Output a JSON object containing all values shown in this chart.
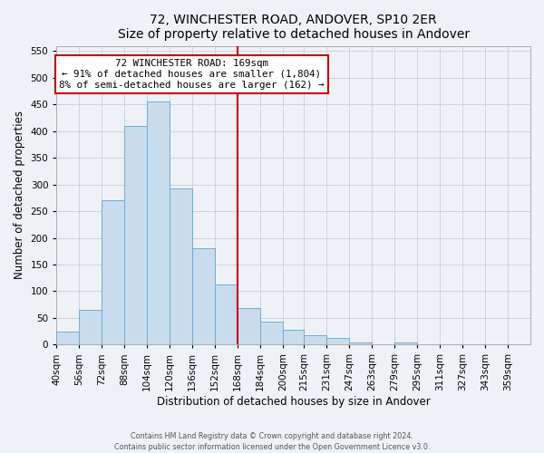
{
  "title": "72, WINCHESTER ROAD, ANDOVER, SP10 2ER",
  "subtitle": "Size of property relative to detached houses in Andover",
  "xlabel": "Distribution of detached houses by size in Andover",
  "ylabel": "Number of detached properties",
  "bar_edges": [
    40,
    56,
    72,
    88,
    104,
    120,
    136,
    152,
    168,
    184,
    200,
    215,
    231,
    247,
    263,
    279,
    295,
    311,
    327,
    343,
    359,
    375
  ],
  "bar_heights": [
    25,
    65,
    270,
    410,
    455,
    293,
    180,
    113,
    68,
    43,
    27,
    17,
    12,
    4,
    1,
    4,
    1,
    1,
    1,
    1,
    0
  ],
  "bar_color": "#c8dcee",
  "bar_edge_color": "#6aaed6",
  "vline_x": 168,
  "vline_color": "#cc0000",
  "annotation_title": "72 WINCHESTER ROAD: 169sqm",
  "annotation_line1": "← 91% of detached houses are smaller (1,804)",
  "annotation_line2": "8% of semi-detached houses are larger (162) →",
  "annotation_box_color": "#cc0000",
  "ylim": [
    0,
    560
  ],
  "yticks": [
    0,
    50,
    100,
    150,
    200,
    250,
    300,
    350,
    400,
    450,
    500,
    550
  ],
  "xlim": [
    40,
    375
  ],
  "tick_positions": [
    40,
    56,
    72,
    88,
    104,
    120,
    136,
    152,
    168,
    184,
    200,
    215,
    231,
    247,
    263,
    279,
    295,
    311,
    327,
    343,
    359
  ],
  "tick_labels": [
    "40sqm",
    "56sqm",
    "72sqm",
    "88sqm",
    "104sqm",
    "120sqm",
    "136sqm",
    "152sqm",
    "168sqm",
    "184sqm",
    "200sqm",
    "215sqm",
    "231sqm",
    "247sqm",
    "263sqm",
    "279sqm",
    "295sqm",
    "311sqm",
    "327sqm",
    "343sqm",
    "359sqm"
  ],
  "footer1": "Contains HM Land Registry data © Crown copyright and database right 2024.",
  "footer2": "Contains public sector information licensed under the Open Government Licence v3.0.",
  "background_color": "#eef2f7",
  "grid_color": "#c8cdd6"
}
